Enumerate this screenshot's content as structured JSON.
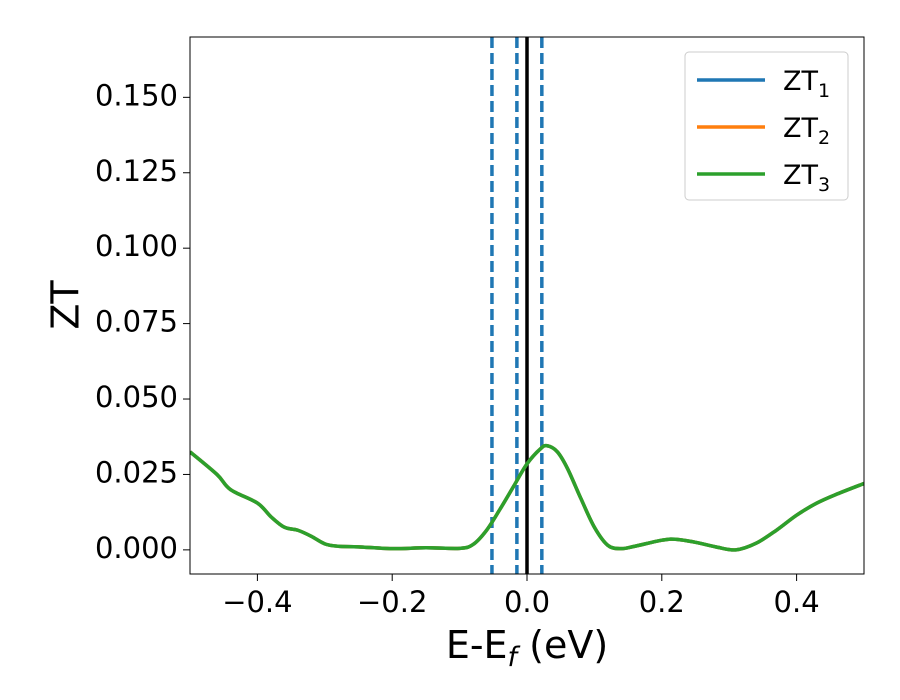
{
  "chart_data": {
    "type": "line",
    "title": "",
    "xlabel_main": "E-E",
    "xlabel_sub": "f",
    "xlabel_unit": " (eV)",
    "ylabel": "ZT",
    "xlim": [
      -0.5,
      0.5
    ],
    "ylim": [
      -0.008,
      0.17
    ],
    "grid": false,
    "legend_position": "top-right",
    "x_ticks": [
      -0.4,
      -0.2,
      0.0,
      0.2,
      0.4
    ],
    "x_tick_labels": [
      "−0.4",
      "−0.2",
      "0.0",
      "0.2",
      "0.4"
    ],
    "y_ticks": [
      0.0,
      0.025,
      0.05,
      0.075,
      0.1,
      0.125,
      0.15
    ],
    "y_tick_labels": [
      "0.000",
      "0.025",
      "0.050",
      "0.075",
      "0.100",
      "0.125",
      "0.150"
    ],
    "vertical_lines": [
      {
        "x": -0.052,
        "style": "dashed",
        "color": "#1f77b4"
      },
      {
        "x": -0.015,
        "style": "dashed",
        "color": "#1f77b4"
      },
      {
        "x": 0.0,
        "style": "solid",
        "color": "#000000"
      },
      {
        "x": 0.022,
        "style": "dashed",
        "color": "#1f77b4"
      }
    ],
    "x": [
      -0.5,
      -0.46,
      -0.44,
      -0.4,
      -0.38,
      -0.36,
      -0.34,
      -0.32,
      -0.3,
      -0.28,
      -0.25,
      -0.2,
      -0.15,
      -0.1,
      -0.08,
      -0.06,
      -0.04,
      -0.02,
      0.0,
      0.02,
      0.03,
      0.045,
      0.06,
      0.08,
      0.1,
      0.12,
      0.14,
      0.16,
      0.2,
      0.22,
      0.25,
      0.28,
      0.31,
      0.34,
      0.37,
      0.4,
      0.43,
      0.46,
      0.5
    ],
    "series": [
      {
        "name": "ZT",
        "sub": "1",
        "color": "#1f77b4",
        "values": [
          0.0325,
          0.025,
          0.02,
          0.0155,
          0.011,
          0.0075,
          0.0065,
          0.0045,
          0.002,
          0.0012,
          0.001,
          0.0004,
          0.0007,
          0.0005,
          0.0018,
          0.0065,
          0.0135,
          0.021,
          0.0285,
          0.0335,
          0.0345,
          0.0325,
          0.027,
          0.017,
          0.0075,
          0.0015,
          0.0004,
          0.0012,
          0.0032,
          0.0035,
          0.0025,
          0.001,
          0.0,
          0.0022,
          0.0065,
          0.0115,
          0.0155,
          0.0185,
          0.022
        ]
      },
      {
        "name": "ZT",
        "sub": "2",
        "color": "#ff7f0e",
        "values": [
          0.0325,
          0.025,
          0.02,
          0.0155,
          0.011,
          0.0075,
          0.0065,
          0.0045,
          0.002,
          0.0012,
          0.001,
          0.0004,
          0.0007,
          0.0005,
          0.0018,
          0.0065,
          0.0135,
          0.021,
          0.0285,
          0.0335,
          0.0345,
          0.0325,
          0.027,
          0.017,
          0.0075,
          0.0015,
          0.0004,
          0.0012,
          0.0032,
          0.0035,
          0.0025,
          0.001,
          0.0,
          0.0022,
          0.0065,
          0.0115,
          0.0155,
          0.0185,
          0.022
        ]
      },
      {
        "name": "ZT",
        "sub": "3",
        "color": "#2ca02c",
        "values": [
          0.0325,
          0.025,
          0.02,
          0.0155,
          0.011,
          0.0075,
          0.0065,
          0.0045,
          0.002,
          0.0012,
          0.001,
          0.0004,
          0.0007,
          0.0005,
          0.0018,
          0.0065,
          0.0135,
          0.021,
          0.0285,
          0.0335,
          0.0345,
          0.0325,
          0.027,
          0.017,
          0.0075,
          0.0015,
          0.0004,
          0.0012,
          0.0032,
          0.0035,
          0.0025,
          0.001,
          0.0,
          0.0022,
          0.0065,
          0.0115,
          0.0155,
          0.0185,
          0.022
        ]
      }
    ]
  }
}
